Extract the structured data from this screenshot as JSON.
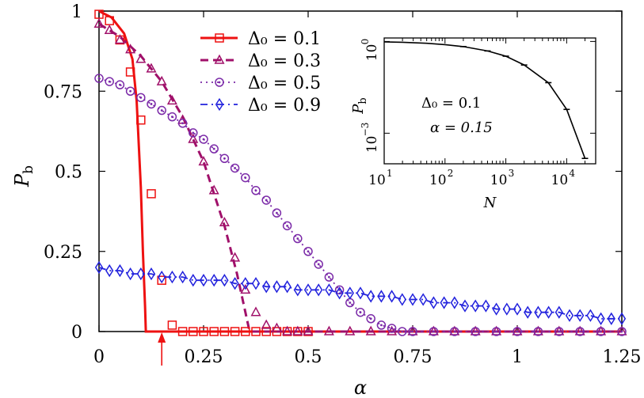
{
  "chart_data": [
    {
      "type": "line",
      "xlabel": "α",
      "ylabel": "P",
      "ylabel_sub": "b",
      "xlim": [
        0,
        1.25
      ],
      "ylim": [
        0,
        1
      ],
      "xticks": [
        0,
        0.25,
        0.5,
        0.75,
        1,
        1.25
      ],
      "xtick_labels": [
        "0",
        "0.25",
        "0.5",
        "0.75",
        "1",
        "1.25"
      ],
      "yticks": [
        0,
        0.25,
        0.5,
        0.75,
        1
      ],
      "ytick_labels": [
        "0",
        "0.25",
        "0.5",
        "0.75",
        "1"
      ],
      "grid": false,
      "legend_position": "top-center",
      "arrow_marker_x": 0.15,
      "theory": [
        {
          "series": 0,
          "x": [
            0,
            0.03,
            0.06,
            0.08,
            0.09,
            0.1,
            0.105,
            0.11,
            0.112,
            1.25
          ],
          "y": [
            1,
            0.98,
            0.93,
            0.85,
            0.72,
            0.45,
            0.25,
            0.08,
            0,
            0
          ]
        },
        {
          "series": 1,
          "x": [
            0,
            0.05,
            0.1,
            0.15,
            0.2,
            0.25,
            0.3,
            0.33,
            0.35,
            0.36,
            1.25
          ],
          "y": [
            0.96,
            0.92,
            0.86,
            0.78,
            0.67,
            0.53,
            0.33,
            0.18,
            0.06,
            0,
            0
          ]
        }
      ],
      "series": [
        {
          "name": "Δ₀ = 0.1",
          "color": "#ee1111",
          "marker": "square",
          "line": "solid",
          "x": [
            0,
            0.025,
            0.05,
            0.075,
            0.1,
            0.125,
            0.15,
            0.175,
            0.2,
            0.225,
            0.25,
            0.275,
            0.3,
            0.325,
            0.35,
            0.375,
            0.4,
            0.425,
            0.45,
            0.475,
            0.5
          ],
          "y": [
            0.99,
            0.97,
            0.91,
            0.81,
            0.66,
            0.43,
            0.16,
            0.02,
            0,
            0,
            0,
            0,
            0,
            0,
            0,
            0,
            0,
            0,
            0,
            0,
            0
          ]
        },
        {
          "name": "Δ₀ = 0.3",
          "color": "#a0106a",
          "marker": "triangle",
          "line": "dashed",
          "x": [
            0,
            0.025,
            0.05,
            0.075,
            0.1,
            0.125,
            0.15,
            0.175,
            0.2,
            0.225,
            0.25,
            0.275,
            0.3,
            0.325,
            0.35,
            0.375,
            0.4,
            0.425,
            0.45,
            0.475,
            0.5,
            0.55,
            0.6,
            0.65,
            0.7,
            0.75,
            0.8,
            0.85,
            0.9,
            0.95,
            1,
            1.05,
            1.1,
            1.15,
            1.2,
            1.25
          ],
          "y": [
            0.96,
            0.94,
            0.91,
            0.88,
            0.85,
            0.82,
            0.78,
            0.72,
            0.66,
            0.6,
            0.53,
            0.44,
            0.34,
            0.23,
            0.13,
            0.06,
            0.02,
            0.01,
            0,
            0,
            0,
            0,
            0,
            0,
            0,
            0,
            0,
            0,
            0,
            0,
            0,
            0,
            0,
            0,
            0,
            0
          ]
        },
        {
          "name": "Δ₀ = 0.5",
          "color": "#7b2aa8",
          "marker": "circle-dot",
          "line": "dotted",
          "x": [
            0,
            0.025,
            0.05,
            0.075,
            0.1,
            0.125,
            0.15,
            0.175,
            0.2,
            0.225,
            0.25,
            0.275,
            0.3,
            0.325,
            0.35,
            0.375,
            0.4,
            0.425,
            0.45,
            0.475,
            0.5,
            0.525,
            0.55,
            0.575,
            0.6,
            0.625,
            0.65,
            0.675,
            0.7,
            0.725,
            0.75,
            0.8,
            0.85,
            0.9,
            0.95,
            1,
            1.05,
            1.1,
            1.15,
            1.2,
            1.25
          ],
          "y": [
            0.79,
            0.78,
            0.77,
            0.75,
            0.73,
            0.71,
            0.69,
            0.67,
            0.65,
            0.62,
            0.6,
            0.57,
            0.54,
            0.51,
            0.48,
            0.44,
            0.41,
            0.37,
            0.33,
            0.29,
            0.25,
            0.21,
            0.17,
            0.13,
            0.09,
            0.06,
            0.04,
            0.02,
            0.01,
            0,
            0,
            0,
            0,
            0,
            0,
            0,
            0,
            0,
            0,
            0,
            0
          ]
        },
        {
          "name": "Δ₀ = 0.9",
          "color": "#2222dd",
          "marker": "diamond",
          "line": "dash-dot",
          "x": [
            0,
            0.025,
            0.05,
            0.075,
            0.1,
            0.125,
            0.15,
            0.175,
            0.2,
            0.225,
            0.25,
            0.275,
            0.3,
            0.325,
            0.35,
            0.375,
            0.4,
            0.425,
            0.45,
            0.475,
            0.5,
            0.525,
            0.55,
            0.575,
            0.6,
            0.625,
            0.65,
            0.675,
            0.7,
            0.725,
            0.75,
            0.775,
            0.8,
            0.825,
            0.85,
            0.875,
            0.9,
            0.925,
            0.95,
            0.975,
            1,
            1.025,
            1.05,
            1.075,
            1.1,
            1.125,
            1.15,
            1.175,
            1.2,
            1.225,
            1.25
          ],
          "y": [
            0.2,
            0.19,
            0.19,
            0.18,
            0.18,
            0.18,
            0.17,
            0.17,
            0.17,
            0.16,
            0.16,
            0.16,
            0.16,
            0.15,
            0.15,
            0.15,
            0.14,
            0.14,
            0.14,
            0.13,
            0.13,
            0.13,
            0.13,
            0.12,
            0.12,
            0.12,
            0.11,
            0.11,
            0.11,
            0.1,
            0.1,
            0.1,
            0.09,
            0.09,
            0.09,
            0.08,
            0.08,
            0.08,
            0.07,
            0.07,
            0.07,
            0.06,
            0.06,
            0.06,
            0.06,
            0.05,
            0.05,
            0.05,
            0.04,
            0.04,
            0.04
          ]
        }
      ]
    },
    {
      "type": "line",
      "inset": true,
      "xlabel": "N",
      "ylabel": "P",
      "ylabel_sub": "b",
      "xscale": "log",
      "yscale": "log",
      "xlim": [
        10,
        30000
      ],
      "ylim": [
        0.0001,
        1.3
      ],
      "xtick_exponents": [
        "1",
        "2",
        "3",
        "4"
      ],
      "ytick_exponents": [
        "0",
        "−3"
      ],
      "annotation_line1": "Δ₀ = 0.1",
      "annotation_line2": "α = 0.15",
      "series": [
        {
          "color": "#000000",
          "x": [
            10,
            20,
            50,
            100,
            200,
            500,
            1000,
            2000,
            5000,
            10000,
            20000
          ],
          "y": [
            0.97,
            0.94,
            0.87,
            0.79,
            0.68,
            0.49,
            0.33,
            0.17,
            0.045,
            0.006,
            0.00015
          ]
        }
      ]
    }
  ]
}
